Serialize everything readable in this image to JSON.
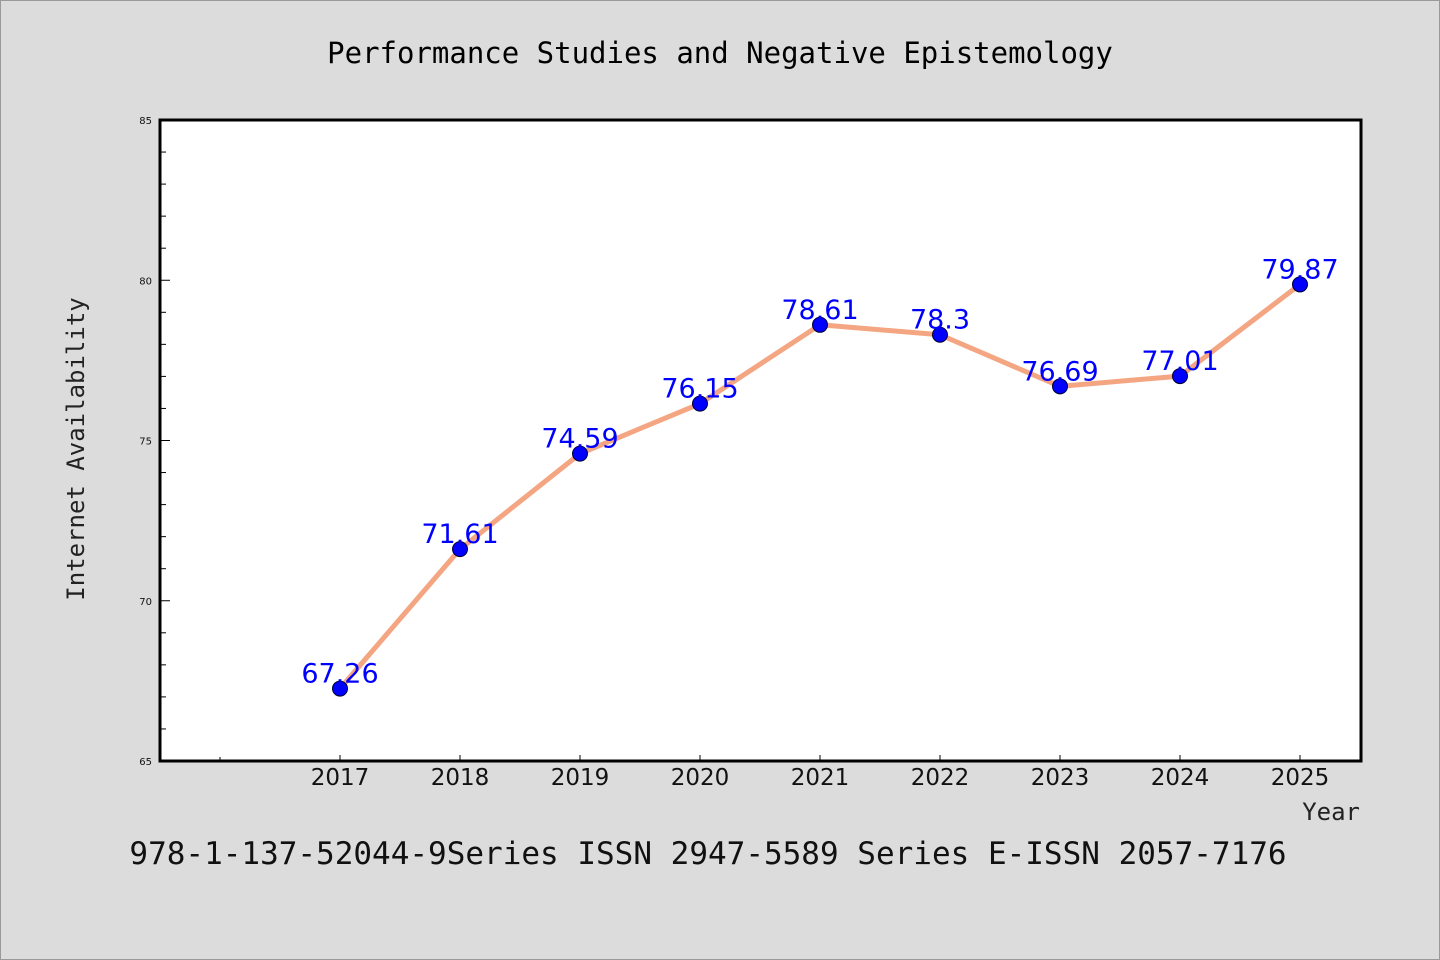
{
  "page": {
    "background": "#dcdcdc",
    "plot_background": "#ffffff",
    "footer": "978-1-137-52044-9Series ISSN 2947-5589 Series E-ISSN 2057-7176"
  },
  "chart_data": {
    "type": "line",
    "title": "Performance Studies and Negative Epistemology",
    "xlabel": "Year",
    "ylabel": "Internet Availability",
    "categories": [
      "2017",
      "2018",
      "2019",
      "2020",
      "2021",
      "2022",
      "2023",
      "2024",
      "2025"
    ],
    "series": [
      {
        "values": [
          67.26,
          71.61,
          74.59,
          76.15,
          78.61,
          78.3,
          76.69,
          77.01,
          79.87
        ],
        "labels": [
          "67.26",
          "71.61",
          "74.59",
          "76.15",
          "78.61",
          "78.3",
          "76.69",
          "77.01",
          "79.87"
        ],
        "line_color": "#f4a582",
        "marker_color": "#0000ff"
      }
    ],
    "ylim": [
      65,
      85
    ],
    "yticks": [
      "65",
      "70",
      "75",
      "80",
      "85"
    ],
    "grid": false,
    "legend": "none",
    "data_label_color": "#0000ff"
  }
}
